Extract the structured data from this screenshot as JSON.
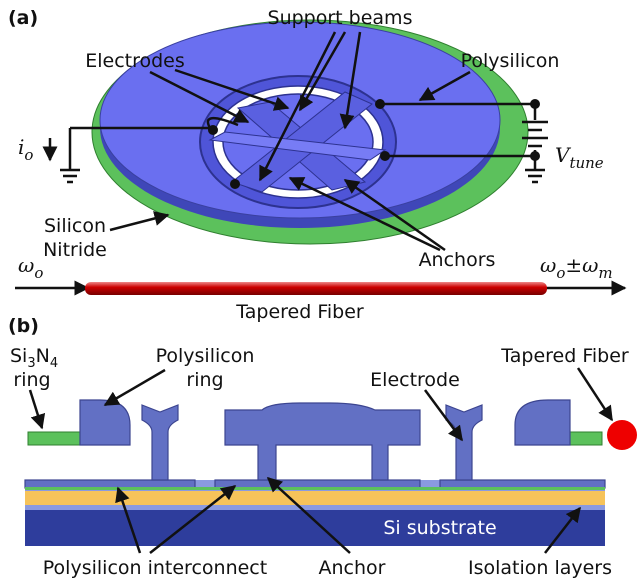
{
  "panel_a": {
    "label": "(a)",
    "support_beams": "Support beams",
    "electrodes": "Electrodes",
    "polysilicon": "Polysilicon",
    "v_tune": {
      "main": "V",
      "sub": "tune"
    },
    "i_o": {
      "main": "i",
      "sub": "o"
    },
    "silicon_nitride": [
      "Silicon",
      "Nitride"
    ],
    "anchors": "Anchors",
    "omega_in": {
      "main": "ω",
      "sub": "o"
    },
    "omega_out": {
      "main": "ω",
      "sub": "o",
      "mid": "±ω",
      "sub2": "m"
    },
    "tapered_fiber": "Tapered Fiber"
  },
  "panel_b": {
    "label": "(b)",
    "si3n4_ring": {
      "parts": [
        "Si",
        "3",
        "N",
        "4"
      ],
      "line2": "ring"
    },
    "polysilicon_ring": [
      "Polysilicon",
      "ring"
    ],
    "electrode": "Electrode",
    "tapered_fiber": "Tapered Fiber",
    "si_substrate": "Si substrate",
    "polysilicon_interconnect": "Polysilicon interconnect",
    "anchor": "Anchor",
    "isolation_layers": "Isolation layers"
  }
}
